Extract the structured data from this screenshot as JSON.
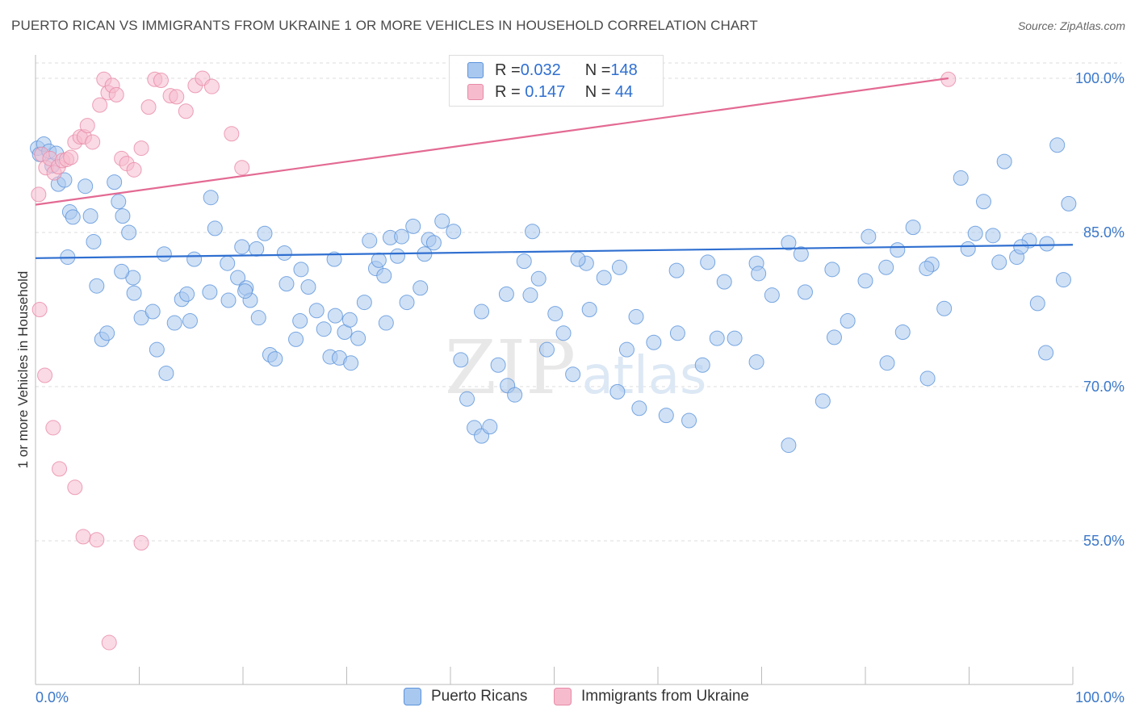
{
  "title": "PUERTO RICAN VS IMMIGRANTS FROM UKRAINE 1 OR MORE VEHICLES IN HOUSEHOLD CORRELATION CHART",
  "source": "Source: ZipAtlas.com",
  "watermark": {
    "zip": "ZIP",
    "atlas": "atlas"
  },
  "colors": {
    "blue_fill": "#a9c8ef",
    "blue_stroke": "#5b93db",
    "blue_line": "#2f6fd0",
    "pink_fill": "#f6bccd",
    "pink_stroke": "#e88aa8",
    "pink_line": "#e36a93",
    "axis_label": "#3b78c9",
    "grid": "#dcdcdc"
  },
  "legend": {
    "rows": [
      {
        "r_label": "R = ",
        "r_value": "0.032",
        "n_label": "N = ",
        "n_value": "148",
        "series": "Puerto Ricans"
      },
      {
        "r_label": "R = ",
        "r_value": " 0.147",
        "n_label": "N = ",
        "n_value": " 44",
        "series": "Immigrants from Ukraine"
      }
    ]
  },
  "chart_data": {
    "type": "scatter",
    "title": "PUERTO RICAN VS IMMIGRANTS FROM UKRAINE 1 OR MORE VEHICLES IN HOUSEHOLD CORRELATION CHART",
    "xlabel": "",
    "ylabel": "1 or more Vehicles in Household",
    "xlim": [
      0,
      100
    ],
    "ylim": [
      40,
      101.5
    ],
    "x_ticks": [
      "0.0%",
      "100.0%"
    ],
    "y_ticks": [
      {
        "value": 100,
        "label": "100.0%"
      },
      {
        "value": 85,
        "label": "85.0%"
      },
      {
        "value": 70,
        "label": "70.0%"
      },
      {
        "value": 55,
        "label": "55.0%"
      }
    ],
    "grid": "horizontal dashed",
    "legend_position": "bottom",
    "series": [
      {
        "name": "Puerto Ricans",
        "r": 0.032,
        "n": 148,
        "trend": [
          [
            0,
            82.5
          ],
          [
            100,
            83.8
          ]
        ],
        "points": [
          [
            0.2,
            93.2
          ],
          [
            0.4,
            92.6
          ],
          [
            0.8,
            93.6
          ],
          [
            1.3,
            92.9
          ],
          [
            1.6,
            91.5
          ],
          [
            2.0,
            92.7
          ],
          [
            2.2,
            89.7
          ],
          [
            2.8,
            90.1
          ],
          [
            3.3,
            87.0
          ],
          [
            3.6,
            86.5
          ],
          [
            4.8,
            89.5
          ],
          [
            5.3,
            86.6
          ],
          [
            5.6,
            84.1
          ],
          [
            5.9,
            79.8
          ],
          [
            6.4,
            74.6
          ],
          [
            6.9,
            75.2
          ],
          [
            7.6,
            89.9
          ],
          [
            8.0,
            88.0
          ],
          [
            8.4,
            86.6
          ],
          [
            9.0,
            85.0
          ],
          [
            9.4,
            80.6
          ],
          [
            10.2,
            76.7
          ],
          [
            11.3,
            77.3
          ],
          [
            11.7,
            73.6
          ],
          [
            12.6,
            71.3
          ],
          [
            13.4,
            76.2
          ],
          [
            14.1,
            78.5
          ],
          [
            14.6,
            79.0
          ],
          [
            14.9,
            76.4
          ],
          [
            16.9,
            88.4
          ],
          [
            17.3,
            85.4
          ],
          [
            18.6,
            78.4
          ],
          [
            19.5,
            80.6
          ],
          [
            19.9,
            83.6
          ],
          [
            20.3,
            79.6
          ],
          [
            20.7,
            78.4
          ],
          [
            21.3,
            83.4
          ],
          [
            22.1,
            84.9
          ],
          [
            22.6,
            73.1
          ],
          [
            23.1,
            72.7
          ],
          [
            24.2,
            80.0
          ],
          [
            25.1,
            74.6
          ],
          [
            25.6,
            81.4
          ],
          [
            26.3,
            79.7
          ],
          [
            27.1,
            77.4
          ],
          [
            27.8,
            75.6
          ],
          [
            28.4,
            72.9
          ],
          [
            29.3,
            72.8
          ],
          [
            29.8,
            75.3
          ],
          [
            30.4,
            72.3
          ],
          [
            31.1,
            74.7
          ],
          [
            31.7,
            78.2
          ],
          [
            32.2,
            84.2
          ],
          [
            32.8,
            81.5
          ],
          [
            33.6,
            80.8
          ],
          [
            34.2,
            84.5
          ],
          [
            34.9,
            82.7
          ],
          [
            35.3,
            84.6
          ],
          [
            35.8,
            78.2
          ],
          [
            36.4,
            85.6
          ],
          [
            37.1,
            79.6
          ],
          [
            37.9,
            84.3
          ],
          [
            38.4,
            84.0
          ],
          [
            39.2,
            86.1
          ],
          [
            40.3,
            85.1
          ],
          [
            41.0,
            72.6
          ],
          [
            41.6,
            68.8
          ],
          [
            42.3,
            66.0
          ],
          [
            43.0,
            65.2
          ],
          [
            43.8,
            66.1
          ],
          [
            44.6,
            72.1
          ],
          [
            45.5,
            70.1
          ],
          [
            46.2,
            69.2
          ],
          [
            47.1,
            82.2
          ],
          [
            47.9,
            85.1
          ],
          [
            48.5,
            80.5
          ],
          [
            49.3,
            73.6
          ],
          [
            50.1,
            77.1
          ],
          [
            50.9,
            75.2
          ],
          [
            51.8,
            71.2
          ],
          [
            53.4,
            77.5
          ],
          [
            54.8,
            80.6
          ],
          [
            56.1,
            69.5
          ],
          [
            57.0,
            73.6
          ],
          [
            58.2,
            67.9
          ],
          [
            59.6,
            74.3
          ],
          [
            60.8,
            67.2
          ],
          [
            61.9,
            75.2
          ],
          [
            63.0,
            66.7
          ],
          [
            64.3,
            72.1
          ],
          [
            65.7,
            74.7
          ],
          [
            67.4,
            74.7
          ],
          [
            69.5,
            72.4
          ],
          [
            71.0,
            78.9
          ],
          [
            72.6,
            64.3
          ],
          [
            74.2,
            79.2
          ],
          [
            75.9,
            68.6
          ],
          [
            77.0,
            74.8
          ],
          [
            78.3,
            76.4
          ],
          [
            80.3,
            84.6
          ],
          [
            82.1,
            72.3
          ],
          [
            83.6,
            75.3
          ],
          [
            84.6,
            85.5
          ],
          [
            86.0,
            70.8
          ],
          [
            87.6,
            77.6
          ],
          [
            89.2,
            90.3
          ],
          [
            90.6,
            84.9
          ],
          [
            91.4,
            88.0
          ],
          [
            92.3,
            84.7
          ],
          [
            93.4,
            91.9
          ],
          [
            94.6,
            82.6
          ],
          [
            95.8,
            84.2
          ],
          [
            96.6,
            78.1
          ],
          [
            97.4,
            73.3
          ],
          [
            98.5,
            93.5
          ],
          [
            99.1,
            80.4
          ],
          [
            99.6,
            87.8
          ],
          [
            3.1,
            82.6
          ],
          [
            8.3,
            81.2
          ],
          [
            12.4,
            82.9
          ],
          [
            15.3,
            82.4
          ],
          [
            18.5,
            82.0
          ],
          [
            24.0,
            83.0
          ],
          [
            28.8,
            82.4
          ],
          [
            33.1,
            82.3
          ],
          [
            37.5,
            82.9
          ],
          [
            45.4,
            79.0
          ],
          [
            47.7,
            78.9
          ],
          [
            53.1,
            82.0
          ],
          [
            57.9,
            76.8
          ],
          [
            61.8,
            81.3
          ],
          [
            66.4,
            80.2
          ],
          [
            69.5,
            82.0
          ],
          [
            72.6,
            84.0
          ],
          [
            76.8,
            81.4
          ],
          [
            80.0,
            80.3
          ],
          [
            83.1,
            83.3
          ],
          [
            86.4,
            81.9
          ],
          [
            89.9,
            83.4
          ],
          [
            92.9,
            82.1
          ],
          [
            95.0,
            83.6
          ],
          [
            97.5,
            83.9
          ],
          [
            9.5,
            79.1
          ],
          [
            16.8,
            79.2
          ],
          [
            20.2,
            79.3
          ],
          [
            21.5,
            76.7
          ],
          [
            25.5,
            76.4
          ],
          [
            28.9,
            76.9
          ],
          [
            30.3,
            76.5
          ],
          [
            33.8,
            76.2
          ],
          [
            43.0,
            77.3
          ],
          [
            52.3,
            82.4
          ],
          [
            56.3,
            81.6
          ],
          [
            64.8,
            82.1
          ],
          [
            69.7,
            81.0
          ],
          [
            73.8,
            82.9
          ],
          [
            82.0,
            81.6
          ],
          [
            85.9,
            81.5
          ]
        ]
      },
      {
        "name": "Immigrants from Ukraine",
        "r": 0.147,
        "n": 44,
        "trend": [
          [
            0,
            87.7
          ],
          [
            88,
            100.0
          ]
        ],
        "points": [
          [
            0.3,
            88.7
          ],
          [
            0.6,
            92.6
          ],
          [
            1.0,
            91.3
          ],
          [
            1.4,
            92.2
          ],
          [
            1.8,
            90.8
          ],
          [
            2.2,
            91.4
          ],
          [
            2.6,
            92.0
          ],
          [
            3.0,
            92.1
          ],
          [
            3.4,
            92.3
          ],
          [
            3.8,
            93.8
          ],
          [
            4.3,
            94.3
          ],
          [
            4.7,
            94.3
          ],
          [
            5.0,
            95.4
          ],
          [
            5.5,
            93.8
          ],
          [
            6.2,
            97.4
          ],
          [
            6.6,
            99.9
          ],
          [
            7.0,
            98.6
          ],
          [
            7.4,
            99.3
          ],
          [
            7.8,
            98.4
          ],
          [
            8.3,
            92.2
          ],
          [
            8.8,
            91.7
          ],
          [
            9.5,
            91.1
          ],
          [
            10.2,
            93.2
          ],
          [
            10.9,
            97.2
          ],
          [
            11.5,
            99.9
          ],
          [
            12.1,
            99.8
          ],
          [
            13.0,
            98.3
          ],
          [
            13.6,
            98.2
          ],
          [
            14.5,
            96.8
          ],
          [
            15.4,
            99.3
          ],
          [
            16.1,
            100.0
          ],
          [
            17.0,
            99.2
          ],
          [
            18.9,
            94.6
          ],
          [
            19.9,
            91.3
          ],
          [
            0.4,
            77.5
          ],
          [
            0.9,
            71.1
          ],
          [
            1.7,
            66.0
          ],
          [
            2.3,
            62.0
          ],
          [
            3.8,
            60.2
          ],
          [
            4.6,
            55.4
          ],
          [
            5.9,
            55.1
          ],
          [
            7.1,
            45.1
          ],
          [
            10.2,
            54.8
          ],
          [
            88.0,
            99.9
          ]
        ]
      }
    ]
  }
}
